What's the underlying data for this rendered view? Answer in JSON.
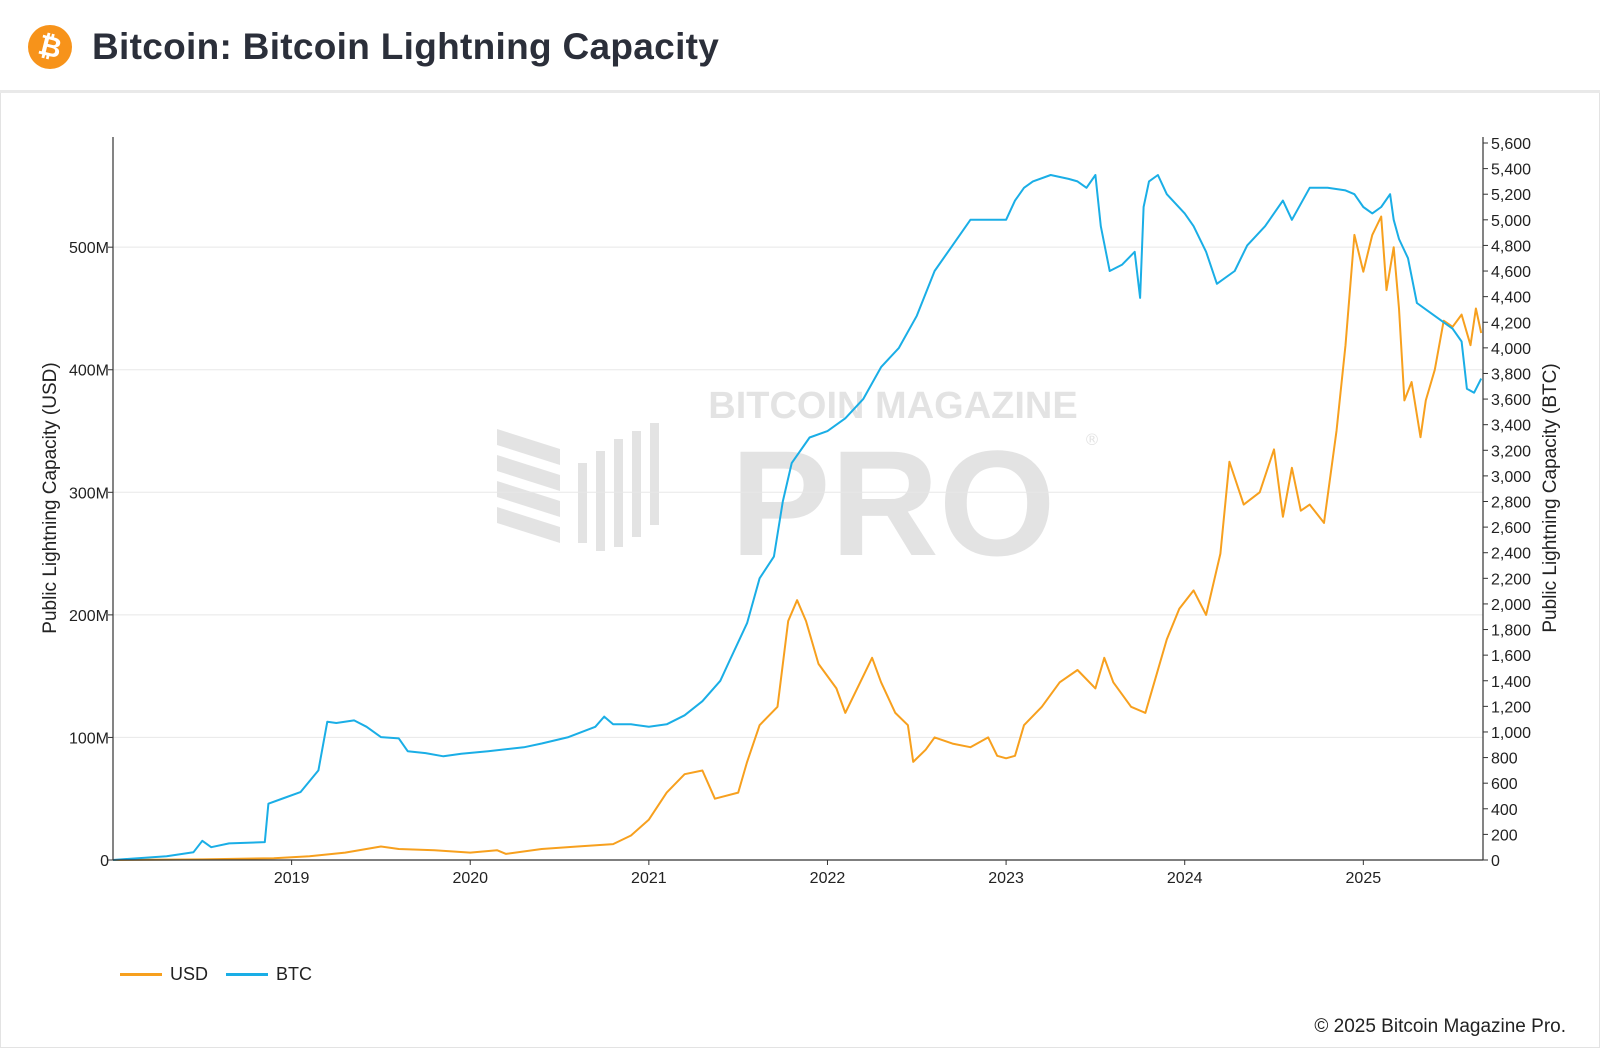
{
  "header": {
    "title": "Bitcoin: Bitcoin Lightning Capacity",
    "logo_icon": "bitcoin-icon",
    "logo_glyph": "₿",
    "logo_color": "#f7931a"
  },
  "watermark": {
    "top": "BITCOIN MAGAZINE",
    "main": "PRO",
    "mark": "®"
  },
  "footer": {
    "copyright": "© 2025 Bitcoin Magazine Pro."
  },
  "legend": [
    {
      "label": "USD",
      "color": "#f7a01e"
    },
    {
      "label": "BTC",
      "color": "#1aaee6"
    }
  ],
  "chart_data": {
    "type": "line",
    "title": "Bitcoin: Bitcoin Lightning Capacity",
    "x_range": [
      2018.0,
      2025.67
    ],
    "x_ticks": [
      {
        "value": 2019,
        "label": "2019"
      },
      {
        "value": 2020,
        "label": "2020"
      },
      {
        "value": 2021,
        "label": "2021"
      },
      {
        "value": 2022,
        "label": "2022"
      },
      {
        "value": 2023,
        "label": "2023"
      },
      {
        "value": 2024,
        "label": "2024"
      },
      {
        "value": 2025,
        "label": "2025"
      }
    ],
    "y_left": {
      "label": "Public Lightning Capacity (USD)",
      "range": [
        0,
        585000000
      ],
      "ticks": [
        {
          "value": 0,
          "label": "0"
        },
        {
          "value": 100000000,
          "label": "100M"
        },
        {
          "value": 200000000,
          "label": "200M"
        },
        {
          "value": 300000000,
          "label": "300M"
        },
        {
          "value": 400000000,
          "label": "400M"
        },
        {
          "value": 500000000,
          "label": "500M"
        }
      ]
    },
    "y_right": {
      "label": "Public Lightning Capacity (BTC)",
      "range": [
        0,
        5600
      ],
      "ticks": [
        {
          "value": 0,
          "label": "0"
        },
        {
          "value": 200,
          "label": "200"
        },
        {
          "value": 400,
          "label": "400"
        },
        {
          "value": 600,
          "label": "600"
        },
        {
          "value": 800,
          "label": "800"
        },
        {
          "value": 1000,
          "label": "1,000"
        },
        {
          "value": 1200,
          "label": "1,200"
        },
        {
          "value": 1400,
          "label": "1,400"
        },
        {
          "value": 1600,
          "label": "1,600"
        },
        {
          "value": 1800,
          "label": "1,800"
        },
        {
          "value": 2000,
          "label": "2,000"
        },
        {
          "value": 2200,
          "label": "2,200"
        },
        {
          "value": 2400,
          "label": "2,400"
        },
        {
          "value": 2600,
          "label": "2,600"
        },
        {
          "value": 2800,
          "label": "2,800"
        },
        {
          "value": 3000,
          "label": "3,000"
        },
        {
          "value": 3200,
          "label": "3,200"
        },
        {
          "value": 3400,
          "label": "3,400"
        },
        {
          "value": 3600,
          "label": "3,600"
        },
        {
          "value": 3800,
          "label": "3,800"
        },
        {
          "value": 4000,
          "label": "4,000"
        },
        {
          "value": 4200,
          "label": "4,200"
        },
        {
          "value": 4400,
          "label": "4,400"
        },
        {
          "value": 4600,
          "label": "4,600"
        },
        {
          "value": 4800,
          "label": "4,800"
        },
        {
          "value": 5000,
          "label": "5,000"
        },
        {
          "value": 5200,
          "label": "5,200"
        },
        {
          "value": 5400,
          "label": "5,400"
        },
        {
          "value": 5600,
          "label": "5,600"
        }
      ]
    },
    "grid": true,
    "legend_position": "bottom-left",
    "series": [
      {
        "name": "USD",
        "axis": "left",
        "color": "#f7a01e",
        "points": [
          [
            2018.0,
            0
          ],
          [
            2018.5,
            500000
          ],
          [
            2018.9,
            1500000
          ],
          [
            2019.1,
            3000000
          ],
          [
            2019.3,
            6000000
          ],
          [
            2019.5,
            11000000
          ],
          [
            2019.6,
            9000000
          ],
          [
            2019.8,
            8000000
          ],
          [
            2020.0,
            6000000
          ],
          [
            2020.15,
            8000000
          ],
          [
            2020.2,
            5000000
          ],
          [
            2020.4,
            9000000
          ],
          [
            2020.6,
            11000000
          ],
          [
            2020.8,
            13000000
          ],
          [
            2020.9,
            20000000
          ],
          [
            2021.0,
            33000000
          ],
          [
            2021.1,
            55000000
          ],
          [
            2021.2,
            70000000
          ],
          [
            2021.3,
            73000000
          ],
          [
            2021.37,
            50000000
          ],
          [
            2021.5,
            55000000
          ],
          [
            2021.55,
            80000000
          ],
          [
            2021.62,
            110000000
          ],
          [
            2021.72,
            125000000
          ],
          [
            2021.78,
            195000000
          ],
          [
            2021.83,
            212000000
          ],
          [
            2021.88,
            195000000
          ],
          [
            2021.95,
            160000000
          ],
          [
            2022.05,
            140000000
          ],
          [
            2022.1,
            120000000
          ],
          [
            2022.2,
            150000000
          ],
          [
            2022.25,
            165000000
          ],
          [
            2022.3,
            145000000
          ],
          [
            2022.38,
            120000000
          ],
          [
            2022.45,
            110000000
          ],
          [
            2022.48,
            80000000
          ],
          [
            2022.55,
            90000000
          ],
          [
            2022.6,
            100000000
          ],
          [
            2022.7,
            95000000
          ],
          [
            2022.8,
            92000000
          ],
          [
            2022.9,
            100000000
          ],
          [
            2022.95,
            85000000
          ],
          [
            2023.0,
            83000000
          ],
          [
            2023.05,
            85000000
          ],
          [
            2023.1,
            110000000
          ],
          [
            2023.2,
            125000000
          ],
          [
            2023.3,
            145000000
          ],
          [
            2023.4,
            155000000
          ],
          [
            2023.5,
            140000000
          ],
          [
            2023.55,
            165000000
          ],
          [
            2023.6,
            145000000
          ],
          [
            2023.7,
            125000000
          ],
          [
            2023.78,
            120000000
          ],
          [
            2023.83,
            145000000
          ],
          [
            2023.9,
            180000000
          ],
          [
            2023.97,
            205000000
          ],
          [
            2024.05,
            220000000
          ],
          [
            2024.12,
            200000000
          ],
          [
            2024.2,
            250000000
          ],
          [
            2024.25,
            325000000
          ],
          [
            2024.33,
            290000000
          ],
          [
            2024.42,
            300000000
          ],
          [
            2024.5,
            335000000
          ],
          [
            2024.55,
            280000000
          ],
          [
            2024.6,
            320000000
          ],
          [
            2024.65,
            285000000
          ],
          [
            2024.7,
            290000000
          ],
          [
            2024.78,
            275000000
          ],
          [
            2024.85,
            350000000
          ],
          [
            2024.9,
            420000000
          ],
          [
            2024.95,
            510000000
          ],
          [
            2025.0,
            480000000
          ],
          [
            2025.05,
            510000000
          ],
          [
            2025.1,
            525000000
          ],
          [
            2025.13,
            465000000
          ],
          [
            2025.17,
            500000000
          ],
          [
            2025.2,
            450000000
          ],
          [
            2025.23,
            375000000
          ],
          [
            2025.27,
            390000000
          ],
          [
            2025.32,
            345000000
          ],
          [
            2025.35,
            375000000
          ],
          [
            2025.4,
            400000000
          ],
          [
            2025.45,
            440000000
          ],
          [
            2025.5,
            435000000
          ],
          [
            2025.55,
            445000000
          ],
          [
            2025.6,
            420000000
          ],
          [
            2025.63,
            450000000
          ],
          [
            2025.66,
            430000000
          ]
        ]
      },
      {
        "name": "BTC",
        "axis": "right",
        "color": "#1aaee6",
        "points": [
          [
            2018.0,
            0
          ],
          [
            2018.3,
            30
          ],
          [
            2018.45,
            60
          ],
          [
            2018.5,
            150
          ],
          [
            2018.55,
            100
          ],
          [
            2018.65,
            130
          ],
          [
            2018.85,
            140
          ],
          [
            2018.87,
            440
          ],
          [
            2018.95,
            480
          ],
          [
            2019.05,
            530
          ],
          [
            2019.15,
            700
          ],
          [
            2019.2,
            1080
          ],
          [
            2019.25,
            1070
          ],
          [
            2019.35,
            1090
          ],
          [
            2019.42,
            1040
          ],
          [
            2019.5,
            960
          ],
          [
            2019.6,
            950
          ],
          [
            2019.65,
            850
          ],
          [
            2019.75,
            835
          ],
          [
            2019.85,
            810
          ],
          [
            2019.95,
            830
          ],
          [
            2020.1,
            850
          ],
          [
            2020.3,
            880
          ],
          [
            2020.4,
            910
          ],
          [
            2020.55,
            960
          ],
          [
            2020.7,
            1040
          ],
          [
            2020.75,
            1120
          ],
          [
            2020.8,
            1060
          ],
          [
            2020.9,
            1060
          ],
          [
            2021.0,
            1040
          ],
          [
            2021.1,
            1060
          ],
          [
            2021.2,
            1130
          ],
          [
            2021.3,
            1240
          ],
          [
            2021.4,
            1400
          ],
          [
            2021.45,
            1550
          ],
          [
            2021.55,
            1850
          ],
          [
            2021.62,
            2200
          ],
          [
            2021.7,
            2370
          ],
          [
            2021.75,
            2800
          ],
          [
            2021.8,
            3100
          ],
          [
            2021.9,
            3300
          ],
          [
            2022.0,
            3350
          ],
          [
            2022.1,
            3450
          ],
          [
            2022.2,
            3600
          ],
          [
            2022.3,
            3850
          ],
          [
            2022.4,
            4000
          ],
          [
            2022.5,
            4250
          ],
          [
            2022.6,
            4600
          ],
          [
            2022.7,
            4800
          ],
          [
            2022.8,
            5000
          ],
          [
            2022.95,
            5000
          ],
          [
            2023.0,
            5000
          ],
          [
            2023.05,
            5150
          ],
          [
            2023.1,
            5250
          ],
          [
            2023.15,
            5300
          ],
          [
            2023.25,
            5350
          ],
          [
            2023.35,
            5320
          ],
          [
            2023.4,
            5300
          ],
          [
            2023.45,
            5250
          ],
          [
            2023.5,
            5350
          ],
          [
            2023.53,
            4950
          ],
          [
            2023.58,
            4600
          ],
          [
            2023.65,
            4650
          ],
          [
            2023.72,
            4750
          ],
          [
            2023.75,
            4390
          ],
          [
            2023.77,
            5100
          ],
          [
            2023.8,
            5300
          ],
          [
            2023.85,
            5350
          ],
          [
            2023.9,
            5200
          ],
          [
            2024.0,
            5050
          ],
          [
            2024.05,
            4950
          ],
          [
            2024.12,
            4750
          ],
          [
            2024.18,
            4500
          ],
          [
            2024.28,
            4600
          ],
          [
            2024.35,
            4800
          ],
          [
            2024.45,
            4950
          ],
          [
            2024.55,
            5150
          ],
          [
            2024.6,
            5000
          ],
          [
            2024.7,
            5250
          ],
          [
            2024.8,
            5250
          ],
          [
            2024.9,
            5230
          ],
          [
            2024.95,
            5200
          ],
          [
            2025.0,
            5100
          ],
          [
            2025.05,
            5050
          ],
          [
            2025.1,
            5100
          ],
          [
            2025.15,
            5200
          ],
          [
            2025.17,
            5000
          ],
          [
            2025.2,
            4850
          ],
          [
            2025.25,
            4700
          ],
          [
            2025.3,
            4350
          ],
          [
            2025.35,
            4300
          ],
          [
            2025.45,
            4200
          ],
          [
            2025.5,
            4150
          ],
          [
            2025.55,
            4050
          ],
          [
            2025.58,
            3680
          ],
          [
            2025.62,
            3650
          ],
          [
            2025.66,
            3760
          ]
        ]
      }
    ]
  }
}
